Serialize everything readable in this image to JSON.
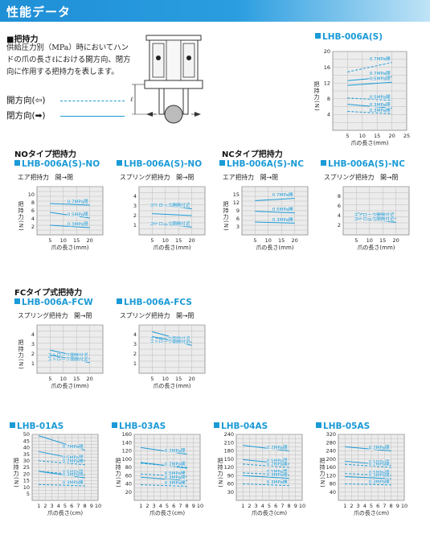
{
  "header": {
    "title": "性能データ"
  },
  "intro": {
    "heading": "■把持力",
    "text": "供給圧力別（MPa）時においてハンドの爪の長さℓにおける開方向、閉方向に作用する把持力を表します。",
    "legend_open": "開方向(⇦)",
    "legend_close": "閉方向(➡)"
  },
  "sections": {
    "no": "NOタイプ把持力",
    "nc": "NCタイプ把持力",
    "fc": "FCタイプ式把持力"
  },
  "colors": {
    "accent": "#1a9ad6",
    "grid": "#bcbcbc",
    "plot_bg": "#ececec"
  },
  "chart_data": [
    {
      "id": "lhb006as",
      "type": "line",
      "title": "LHB-006A(S)",
      "subtitle": "",
      "xlabel": "爪の長さ(mm)",
      "ylabel": "把持力(N)",
      "xlim": [
        0,
        25
      ],
      "ylim": [
        0,
        20
      ],
      "xticks": [
        5,
        10,
        15,
        20,
        25
      ],
      "yticks": [
        4,
        8,
        12,
        16,
        20
      ],
      "series": [
        {
          "name": "0.7MPa開",
          "dash": true,
          "x": [
            5,
            20
          ],
          "y": [
            14.8,
            17.2
          ]
        },
        {
          "name": "0.7MPa閉",
          "dash": false,
          "x": [
            5,
            20
          ],
          "y": [
            12.6,
            13.6
          ]
        },
        {
          "name": "0.5MPa閉",
          "dash": false,
          "x": [
            5,
            20
          ],
          "y": [
            11.4,
            12.2
          ]
        },
        {
          "name": "0.5MPa開",
          "dash": true,
          "x": [
            5,
            20
          ],
          "y": [
            8.2,
            7.6
          ]
        },
        {
          "name": "0.3MPa閉",
          "dash": false,
          "x": [
            5,
            20
          ],
          "y": [
            6.6,
            5.6
          ]
        },
        {
          "name": "0.3MPa開",
          "dash": true,
          "x": [
            5,
            20
          ],
          "y": [
            4.8,
            4.2
          ]
        }
      ]
    },
    {
      "id": "lhb006asno",
      "type": "line",
      "title": "LHB-006A(S)-NO",
      "subtitle": "エア把持力　開→閉",
      "xlabel": "爪の長さ(mm)",
      "ylabel": "把持力(N)",
      "xlim": [
        0,
        25
      ],
      "ylim": [
        0,
        12
      ],
      "xticks": [
        5,
        10,
        15,
        20
      ],
      "yticks": [
        2,
        4,
        6,
        8,
        10
      ],
      "series": [
        {
          "name": "0.7MPa閉",
          "dash": false,
          "x": [
            5,
            20
          ],
          "y": [
            7.8,
            7.4
          ]
        },
        {
          "name": "0.5MPa閉",
          "dash": false,
          "x": [
            5,
            20
          ],
          "y": [
            5.6,
            4.2
          ]
        },
        {
          "name": "0.3MPa閉",
          "dash": false,
          "x": [
            5,
            20
          ],
          "y": [
            2.4,
            1.8
          ]
        }
      ]
    },
    {
      "id": "lhb006asno2",
      "type": "line",
      "title": "LHB-006A(S)-NO",
      "subtitle": "スプリング把持力　開→閉",
      "xlabel": "爪の長さ(mm)",
      "ylabel": "",
      "xlim": [
        0,
        25
      ],
      "ylim": [
        0,
        5
      ],
      "xticks": [
        5,
        10,
        15,
        20
      ],
      "yticks": [
        1,
        2,
        3,
        4
      ],
      "series": [
        {
          "name": "ストローク開側付近",
          "dash": false,
          "x": [
            5,
            20
          ],
          "y": [
            3.2,
            2.7
          ]
        },
        {
          "name": "",
          "dash": false,
          "x": [
            5,
            20
          ],
          "y": [
            2.2,
            2.0
          ]
        },
        {
          "name": "ストローク閉側付近",
          "dash": false,
          "x": [
            5,
            20
          ],
          "y": [
            1.2,
            0.8
          ]
        }
      ]
    },
    {
      "id": "lhb006asnc",
      "type": "line",
      "title": "LHB-006A(S)-NC",
      "subtitle": "エア把持力　開→閉",
      "xlabel": "爪の長さ(mm)",
      "ylabel": "把持力(N)",
      "xlim": [
        0,
        25
      ],
      "ylim": [
        0,
        18
      ],
      "xticks": [
        5,
        10,
        15,
        20
      ],
      "yticks": [
        3,
        6,
        9,
        12,
        15
      ],
      "series": [
        {
          "name": "0.7MPa開",
          "dash": false,
          "x": [
            5,
            20
          ],
          "y": [
            12.8,
            13.6
          ]
        },
        {
          "name": "0.5MPa開",
          "dash": false,
          "x": [
            5,
            20
          ],
          "y": [
            8.8,
            8.2
          ]
        },
        {
          "name": "0.3MPa開",
          "dash": false,
          "x": [
            5,
            20
          ],
          "y": [
            4.8,
            4.4
          ]
        }
      ]
    },
    {
      "id": "lhb006asnc2",
      "type": "line",
      "title": "LHB-006A(S)-NC",
      "subtitle": "スプリング把持力　開→閉",
      "xlabel": "爪の長さ(mm)",
      "ylabel": "",
      "xlim": [
        0,
        25
      ],
      "ylim": [
        0,
        10
      ],
      "xticks": [
        5,
        10,
        15,
        20
      ],
      "yticks": [
        2,
        4,
        6,
        8
      ],
      "series": [
        {
          "name": "ストローク開側付近",
          "dash": false,
          "x": [
            5,
            20
          ],
          "y": [
            4.6,
            3.4
          ]
        },
        {
          "name": "ストローク閉側付近",
          "dash": false,
          "x": [
            5,
            20
          ],
          "y": [
            3.4,
            2.6
          ]
        }
      ]
    },
    {
      "id": "lhb006afcw",
      "type": "line",
      "title": "LHB-006A-FCW",
      "subtitle": "スプリング把持力　開→閉",
      "xlabel": "爪の長さ(mm)",
      "ylabel": "把持力(N)",
      "xlim": [
        0,
        25
      ],
      "ylim": [
        0,
        5
      ],
      "xticks": [
        5,
        10,
        15,
        20
      ],
      "yticks": [
        1,
        2,
        3,
        4
      ],
      "series": [
        {
          "name": "ストローク開側付近",
          "dash": false,
          "x": [
            5,
            20
          ],
          "y": [
            2.4,
            1.5
          ]
        },
        {
          "name": "ストローク閉側付近",
          "dash": false,
          "x": [
            5,
            20
          ],
          "y": [
            1.9,
            1.1
          ]
        }
      ]
    },
    {
      "id": "lhb006afcs",
      "type": "line",
      "title": "LHB-006A-FCS",
      "subtitle": "スプリング把持力　開→閉",
      "xlabel": "爪の長さ(mm)",
      "ylabel": "",
      "xlim": [
        0,
        25
      ],
      "ylim": [
        0,
        5
      ],
      "xticks": [
        5,
        10,
        15,
        20
      ],
      "yticks": [
        1,
        2,
        3,
        4
      ],
      "series": [
        {
          "name": "ストローク閉側付近",
          "dash": false,
          "x": [
            5,
            20
          ],
          "y": [
            4.3,
            3.2
          ]
        },
        {
          "name": "ストローク開側付近",
          "dash": false,
          "x": [
            5,
            20
          ],
          "y": [
            3.8,
            2.9
          ]
        }
      ]
    },
    {
      "id": "lhb01as",
      "type": "line",
      "title": "LHB-01AS",
      "subtitle": "",
      "xlabel": "爪の長さ(cm)",
      "ylabel": "把持力(N)",
      "xlim": [
        0,
        10
      ],
      "ylim": [
        0,
        50
      ],
      "xticks": [
        1,
        2,
        3,
        4,
        5,
        6,
        7,
        8,
        9,
        10
      ],
      "yticks": [
        5,
        10,
        15,
        20,
        25,
        30,
        35,
        40,
        45,
        50
      ],
      "series": [
        {
          "name": "0.7MPa閉",
          "dash": false,
          "x": [
            1,
            8
          ],
          "y": [
            49,
            38
          ]
        },
        {
          "name": "0.5MPa閉",
          "dash": false,
          "x": [
            1,
            8
          ],
          "y": [
            37,
            30
          ]
        },
        {
          "name": "0.7MPa開",
          "dash": true,
          "x": [
            1,
            8
          ],
          "y": [
            30,
            27
          ]
        },
        {
          "name": "0.5MPa開",
          "dash": true,
          "x": [
            1,
            8
          ],
          "y": [
            22,
            19
          ]
        },
        {
          "name": "0.3MPa閉",
          "dash": false,
          "x": [
            1,
            8
          ],
          "y": [
            22,
            17
          ]
        },
        {
          "name": "0.3MPa開",
          "dash": true,
          "x": [
            1,
            8
          ],
          "y": [
            12,
            11
          ]
        }
      ]
    },
    {
      "id": "lhb03as",
      "type": "line",
      "title": "LHB-03AS",
      "subtitle": "",
      "xlabel": "爪の長さ(cm)",
      "ylabel": "把持力(N)",
      "xlim": [
        0,
        10
      ],
      "ylim": [
        0,
        160
      ],
      "xticks": [
        1,
        2,
        3,
        4,
        5,
        6,
        7,
        8,
        9,
        10
      ],
      "yticks": [
        20,
        40,
        60,
        80,
        100,
        120,
        140,
        160
      ],
      "series": [
        {
          "name": "0.7MPa閉",
          "dash": false,
          "x": [
            1,
            8
          ],
          "y": [
            128,
            112
          ]
        },
        {
          "name": "0.5MPa閉",
          "dash": false,
          "x": [
            1,
            8
          ],
          "y": [
            92,
            78
          ]
        },
        {
          "name": "0.7MPa開",
          "dash": true,
          "x": [
            1,
            8
          ],
          "y": [
            90,
            80
          ]
        },
        {
          "name": "0.5MPa開",
          "dash": true,
          "x": [
            1,
            8
          ],
          "y": [
            64,
            58
          ]
        },
        {
          "name": "0.3MPa閉",
          "dash": false,
          "x": [
            1,
            8
          ],
          "y": [
            56,
            48
          ]
        },
        {
          "name": "0.3MPa開",
          "dash": true,
          "x": [
            1,
            8
          ],
          "y": [
            38,
            34
          ]
        }
      ]
    },
    {
      "id": "lhb04as",
      "type": "line",
      "title": "LHB-04AS",
      "subtitle": "",
      "xlabel": "爪の長さ(cm)",
      "ylabel": "把持力(N)",
      "xlim": [
        0,
        10
      ],
      "ylim": [
        0,
        240
      ],
      "xticks": [
        1,
        2,
        3,
        4,
        5,
        6,
        7,
        8,
        9,
        10
      ],
      "yticks": [
        30,
        60,
        90,
        120,
        150,
        180,
        210,
        240
      ],
      "series": [
        {
          "name": "0.7MPa閉",
          "dash": false,
          "x": [
            1,
            8
          ],
          "y": [
            200,
            180
          ]
        },
        {
          "name": "0.5MPa閉",
          "dash": false,
          "x": [
            1,
            8
          ],
          "y": [
            148,
            132
          ]
        },
        {
          "name": "0.7MPa開",
          "dash": true,
          "x": [
            1,
            8
          ],
          "y": [
            132,
            120
          ]
        },
        {
          "name": "0.5MPa開",
          "dash": true,
          "x": [
            1,
            8
          ],
          "y": [
            100,
            92
          ]
        },
        {
          "name": "0.3MPa閉",
          "dash": false,
          "x": [
            1,
            8
          ],
          "y": [
            90,
            80
          ]
        },
        {
          "name": "0.3MPa開",
          "dash": true,
          "x": [
            1,
            8
          ],
          "y": [
            60,
            54
          ]
        }
      ]
    },
    {
      "id": "lhb05as",
      "type": "line",
      "title": "LHB-05AS",
      "subtitle": "",
      "xlabel": "爪の長さ(cm)",
      "ylabel": "把持力(N)",
      "xlim": [
        0,
        10
      ],
      "ylim": [
        0,
        320
      ],
      "xticks": [
        1,
        2,
        3,
        4,
        5,
        6,
        7,
        8,
        9,
        10
      ],
      "yticks": [
        40,
        80,
        120,
        160,
        200,
        240,
        280,
        320
      ],
      "series": [
        {
          "name": "0.7MPa閉",
          "dash": false,
          "x": [
            1,
            8
          ],
          "y": [
            260,
            240
          ]
        },
        {
          "name": "0.5MPa閉",
          "dash": false,
          "x": [
            1,
            8
          ],
          "y": [
            190,
            170
          ]
        },
        {
          "name": "0.7MPa開",
          "dash": true,
          "x": [
            1,
            8
          ],
          "y": [
            175,
            160
          ]
        },
        {
          "name": "0.5MPa開",
          "dash": true,
          "x": [
            1,
            8
          ],
          "y": [
            130,
            120
          ]
        },
        {
          "name": "0.3MPa閉",
          "dash": false,
          "x": [
            1,
            8
          ],
          "y": [
            115,
            105
          ]
        },
        {
          "name": "0.3MPa開",
          "dash": true,
          "x": [
            1,
            8
          ],
          "y": [
            80,
            75
          ]
        }
      ]
    }
  ]
}
